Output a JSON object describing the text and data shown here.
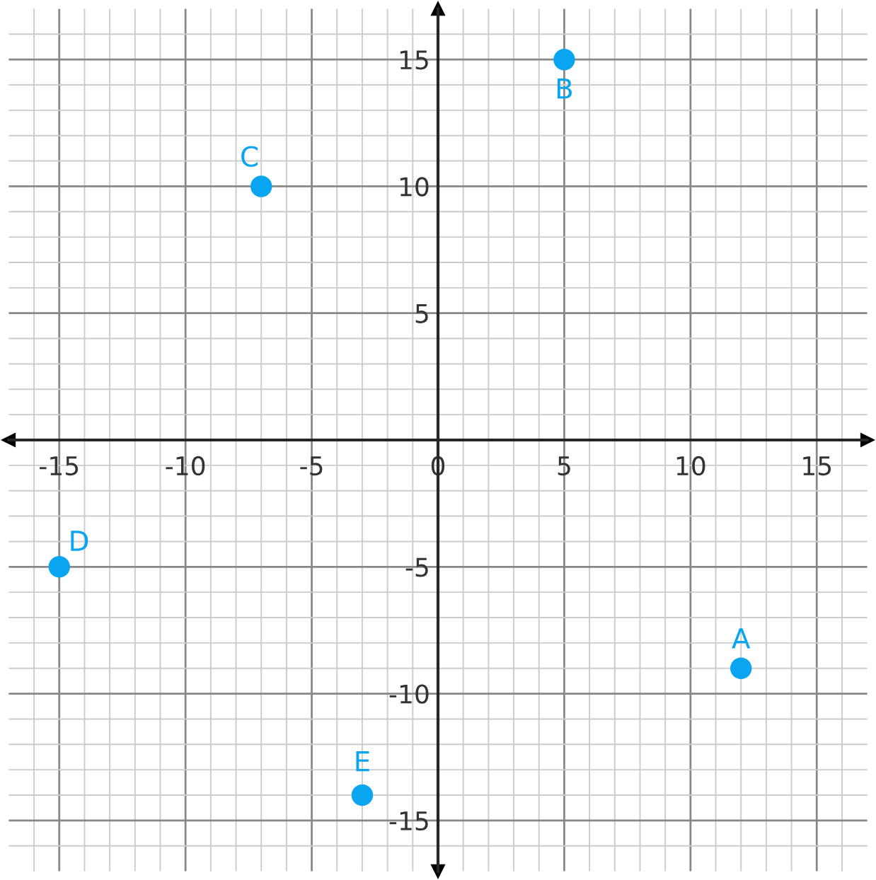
{
  "chart_data": {
    "type": "scatter",
    "x": [
      12,
      5,
      -7,
      -15,
      -3
    ],
    "values": [
      -9,
      15,
      10,
      -5,
      -14
    ],
    "color": "#0aa5f0",
    "marker": "circle",
    "grid": true,
    "xlim": [
      -17,
      17
    ],
    "ylim": [
      -17,
      17
    ],
    "xticks": [
      -15,
      -10,
      -5,
      0,
      5,
      10,
      15
    ],
    "yticks": [
      -15,
      -10,
      -5,
      5,
      10,
      15
    ],
    "annotations": [
      {
        "text": "A",
        "x": 12,
        "y": -9
      },
      {
        "text": "B",
        "x": 5,
        "y": 15
      },
      {
        "text": "C",
        "x": -7,
        "y": 10
      },
      {
        "text": "D",
        "x": -15,
        "y": -5
      },
      {
        "text": "E",
        "x": -3,
        "y": -14
      }
    ]
  }
}
